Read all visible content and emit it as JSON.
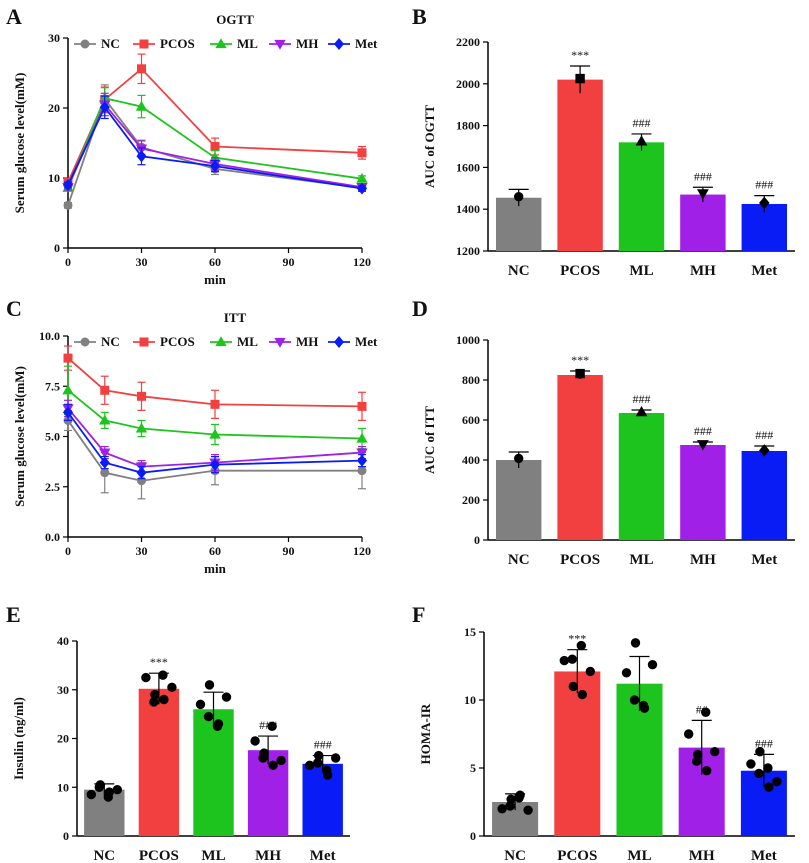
{
  "figure": {
    "panels": [
      "A",
      "B",
      "C",
      "D",
      "E",
      "F"
    ]
  },
  "colors": {
    "NC": "#808080",
    "PCOS": "#f24040",
    "ML": "#1ec41e",
    "MH": "#a020e8",
    "Met": "#0a1cf5"
  },
  "chart_data": [
    {
      "id": "A",
      "type": "line",
      "title": "OGTT",
      "xlabel": "min",
      "ylabel": "Serum glucose level(mM)",
      "x": [
        0,
        15,
        30,
        60,
        120
      ],
      "xticks": [
        "0",
        "30",
        "60",
        "90",
        "120"
      ],
      "xtick_values": [
        0,
        30,
        60,
        90,
        120
      ],
      "xlim": [
        0,
        120
      ],
      "ylim": [
        0,
        30
      ],
      "yticks": [
        "0",
        "10",
        "20",
        "30"
      ],
      "ytick_values": [
        0,
        10,
        20,
        30
      ],
      "legend_position": "top",
      "series": [
        {
          "name": "NC",
          "marker": "circle",
          "values": [
            6.1,
            21.3,
            14.4,
            11.3,
            8.6
          ],
          "err": [
            0.4,
            2.0,
            1.0,
            0.8,
            0.4
          ]
        },
        {
          "name": "PCOS",
          "marker": "square",
          "values": [
            9.4,
            21.2,
            25.6,
            14.5,
            13.6
          ],
          "err": [
            0.5,
            1.8,
            2.1,
            1.2,
            0.9
          ]
        },
        {
          "name": "ML",
          "marker": "triangle-up",
          "values": [
            8.6,
            21.4,
            20.2,
            12.9,
            9.9
          ],
          "err": [
            0.4,
            1.5,
            1.6,
            1.0,
            0.4
          ]
        },
        {
          "name": "MH",
          "marker": "triangle-down",
          "values": [
            8.7,
            20.5,
            14.2,
            12.0,
            8.7
          ],
          "err": [
            0.4,
            1.6,
            1.1,
            0.9,
            0.4
          ]
        },
        {
          "name": "Met",
          "marker": "diamond",
          "values": [
            9.0,
            20.1,
            13.1,
            11.7,
            8.5
          ],
          "err": [
            0.4,
            1.6,
            1.2,
            0.8,
            0.4
          ]
        }
      ]
    },
    {
      "id": "B",
      "type": "bar",
      "title": "",
      "ylabel": "AUC of OGTT",
      "categories": [
        "NC",
        "PCOS",
        "ML",
        "MH",
        "Met"
      ],
      "values": [
        1455,
        2020,
        1720,
        1470,
        1425
      ],
      "err": [
        40,
        65,
        40,
        35,
        40
      ],
      "points": [
        [
          1460
        ],
        [
          2025
        ],
        [
          1725
        ],
        [
          1475
        ],
        [
          1430
        ]
      ],
      "markers": [
        "circle",
        "square",
        "triangle-up",
        "triangle-down",
        "diamond"
      ],
      "annotations": [
        "",
        "***",
        "###",
        "###",
        "###"
      ],
      "ylim": [
        1200,
        2200
      ],
      "yticks": [
        "1200",
        "1400",
        "1600",
        "1800",
        "2000",
        "2200"
      ],
      "ytick_values": [
        1200,
        1400,
        1600,
        1800,
        2000,
        2200
      ]
    },
    {
      "id": "C",
      "type": "line",
      "title": "ITT",
      "xlabel": "min",
      "ylabel": "Serum glucose level(mM)",
      "x": [
        0,
        15,
        30,
        60,
        120
      ],
      "xticks": [
        "0",
        "30",
        "60",
        "90",
        "120"
      ],
      "xtick_values": [
        0,
        30,
        60,
        90,
        120
      ],
      "xlim": [
        0,
        120
      ],
      "ylim": [
        0,
        10
      ],
      "yticks": [
        "0.0",
        "2.5",
        "5.0",
        "7.5",
        "10.0"
      ],
      "ytick_values": [
        0,
        2.5,
        5,
        7.5,
        10
      ],
      "legend_position": "top",
      "series": [
        {
          "name": "NC",
          "marker": "circle",
          "values": [
            5.8,
            3.2,
            2.8,
            3.3,
            3.3
          ],
          "err": [
            0.5,
            1.0,
            0.9,
            0.7,
            0.9
          ]
        },
        {
          "name": "PCOS",
          "marker": "square",
          "values": [
            8.9,
            7.3,
            7.0,
            6.6,
            6.5
          ],
          "err": [
            0.6,
            0.7,
            0.7,
            0.7,
            0.7
          ]
        },
        {
          "name": "ML",
          "marker": "triangle-up",
          "values": [
            7.3,
            5.8,
            5.4,
            5.1,
            4.9
          ],
          "err": [
            1.2,
            0.4,
            0.4,
            0.5,
            0.5
          ]
        },
        {
          "name": "MH",
          "marker": "triangle-down",
          "values": [
            6.4,
            4.2,
            3.5,
            3.7,
            4.2
          ],
          "err": [
            0.4,
            0.3,
            0.3,
            0.4,
            0.3
          ]
        },
        {
          "name": "Met",
          "marker": "diamond",
          "values": [
            6.2,
            3.7,
            3.2,
            3.6,
            3.8
          ],
          "err": [
            0.4,
            0.3,
            0.3,
            0.4,
            0.3
          ]
        }
      ]
    },
    {
      "id": "D",
      "type": "bar",
      "title": "",
      "ylabel": "AUC of ITT",
      "categories": [
        "NC",
        "PCOS",
        "ML",
        "MH",
        "Met"
      ],
      "values": [
        400,
        825,
        635,
        475,
        445
      ],
      "err": [
        40,
        20,
        15,
        15,
        25
      ],
      "points": [
        [
          408
        ],
        [
          832
        ],
        [
          640
        ],
        [
          478
        ],
        [
          448
        ]
      ],
      "markers": [
        "circle",
        "square",
        "triangle-up",
        "triangle-down",
        "diamond"
      ],
      "annotations": [
        "",
        "***",
        "###",
        "###",
        "###"
      ],
      "ylim": [
        0,
        1000
      ],
      "yticks": [
        "0",
        "200",
        "400",
        "600",
        "800",
        "1000"
      ],
      "ytick_values": [
        0,
        200,
        400,
        600,
        800,
        1000
      ]
    },
    {
      "id": "E",
      "type": "bar",
      "title": "",
      "ylabel": "Insulin (ng/ml)",
      "categories": [
        "NC",
        "PCOS",
        "ML",
        "MH",
        "Met"
      ],
      "values": [
        9.5,
        30.2,
        26.0,
        17.6,
        14.8
      ],
      "err": [
        1.2,
        3.2,
        3.5,
        2.9,
        1.7
      ],
      "points": [
        [
          8.5,
          10.5,
          9.0,
          10.0,
          8.0,
          9.5
        ],
        [
          32.5,
          29.0,
          28.0,
          27.5,
          33.0,
          30.5
        ],
        [
          27.0,
          31.0,
          23.0,
          24.5,
          22.5,
          28.5
        ],
        [
          19.5,
          17.0,
          14.5,
          16.0,
          22.5,
          15.5
        ],
        [
          14.5,
          16.5,
          12.5,
          15.0,
          13.5,
          16.0
        ]
      ],
      "markers": [
        "circle",
        "circle",
        "circle",
        "circle",
        "circle"
      ],
      "annotations": [
        "",
        "***",
        "",
        "###",
        "###"
      ],
      "ylim": [
        0,
        40
      ],
      "yticks": [
        "0",
        "10",
        "20",
        "30",
        "40"
      ],
      "ytick_values": [
        0,
        10,
        20,
        30,
        40
      ]
    },
    {
      "id": "F",
      "type": "bar",
      "title": "",
      "ylabel": "HOMA-IR",
      "categories": [
        "NC",
        "PCOS",
        "ML",
        "MH",
        "Met"
      ],
      "values": [
        2.5,
        12.1,
        11.2,
        6.5,
        4.8
      ],
      "err": [
        0.6,
        1.6,
        2.0,
        2.0,
        1.2
      ],
      "points": [
        [
          2.0,
          2.7,
          3.0,
          2.2,
          2.8,
          1.9
        ],
        [
          12.9,
          11.0,
          10.4,
          13.0,
          14.0,
          12.1
        ],
        [
          12.0,
          14.2,
          9.4,
          10.0,
          9.6,
          12.6
        ],
        [
          7.5,
          6.0,
          4.8,
          5.5,
          9.1,
          6.2
        ],
        [
          5.3,
          6.2,
          3.6,
          4.6,
          5.0,
          4.0
        ]
      ],
      "markers": [
        "circle",
        "circle",
        "circle",
        "circle",
        "circle"
      ],
      "annotations": [
        "",
        "***",
        "",
        "##",
        "###"
      ],
      "ylim": [
        0,
        15
      ],
      "yticks": [
        "0",
        "5",
        "10",
        "15"
      ],
      "ytick_values": [
        0,
        5,
        10,
        15
      ]
    }
  ]
}
